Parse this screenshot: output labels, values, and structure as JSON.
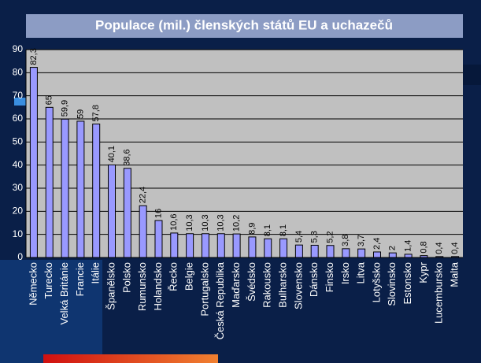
{
  "chart_data": {
    "type": "bar",
    "title": "Populace (mil.) členských států EU a uchazečů",
    "categories": [
      "Německo",
      "Turecko",
      "Velká Británie",
      "Francie",
      "Itálie",
      "Španělsko",
      "Polsko",
      "Rumunsko",
      "Holandsko",
      "Řecko",
      "Belgie",
      "Portugalsko",
      "Česká Republika",
      "Maďarsko",
      "Švédsko",
      "Rakousko",
      "Bulharsko",
      "Slovensko",
      "Dánsko",
      "Finsko",
      "Irsko",
      "Litva",
      "Lotyšsko",
      "Slovinsko",
      "Estonsko",
      "Kypr",
      "Lucembursko",
      "Malta"
    ],
    "values": [
      82.3,
      65,
      59.9,
      59,
      57.8,
      40.1,
      38.6,
      22.4,
      16,
      10.6,
      10.3,
      10.3,
      10.3,
      10.2,
      8.9,
      8.1,
      8.1,
      5.4,
      5.3,
      5.2,
      3.8,
      3.7,
      2.4,
      2,
      1.4,
      0.8,
      0.4,
      0.4
    ],
    "value_labels": [
      "82,3",
      "65",
      "59,9",
      "59",
      "57,8",
      "40,1",
      "38,6",
      "22,4",
      "16",
      "10,6",
      "10,3",
      "10,3",
      "10,3",
      "10,2",
      "8,9",
      "8,1",
      "8,1",
      "5,4",
      "5,3",
      "5,2",
      "3,8",
      "3,7",
      "2,4",
      "2",
      "1,4",
      "0,8",
      "0,4",
      "0,4"
    ],
    "color": "#9999ff",
    "ylim": [
      0,
      90
    ],
    "yticks": [
      0,
      10,
      20,
      30,
      40,
      50,
      60,
      70,
      80,
      90
    ],
    "grid": true
  }
}
